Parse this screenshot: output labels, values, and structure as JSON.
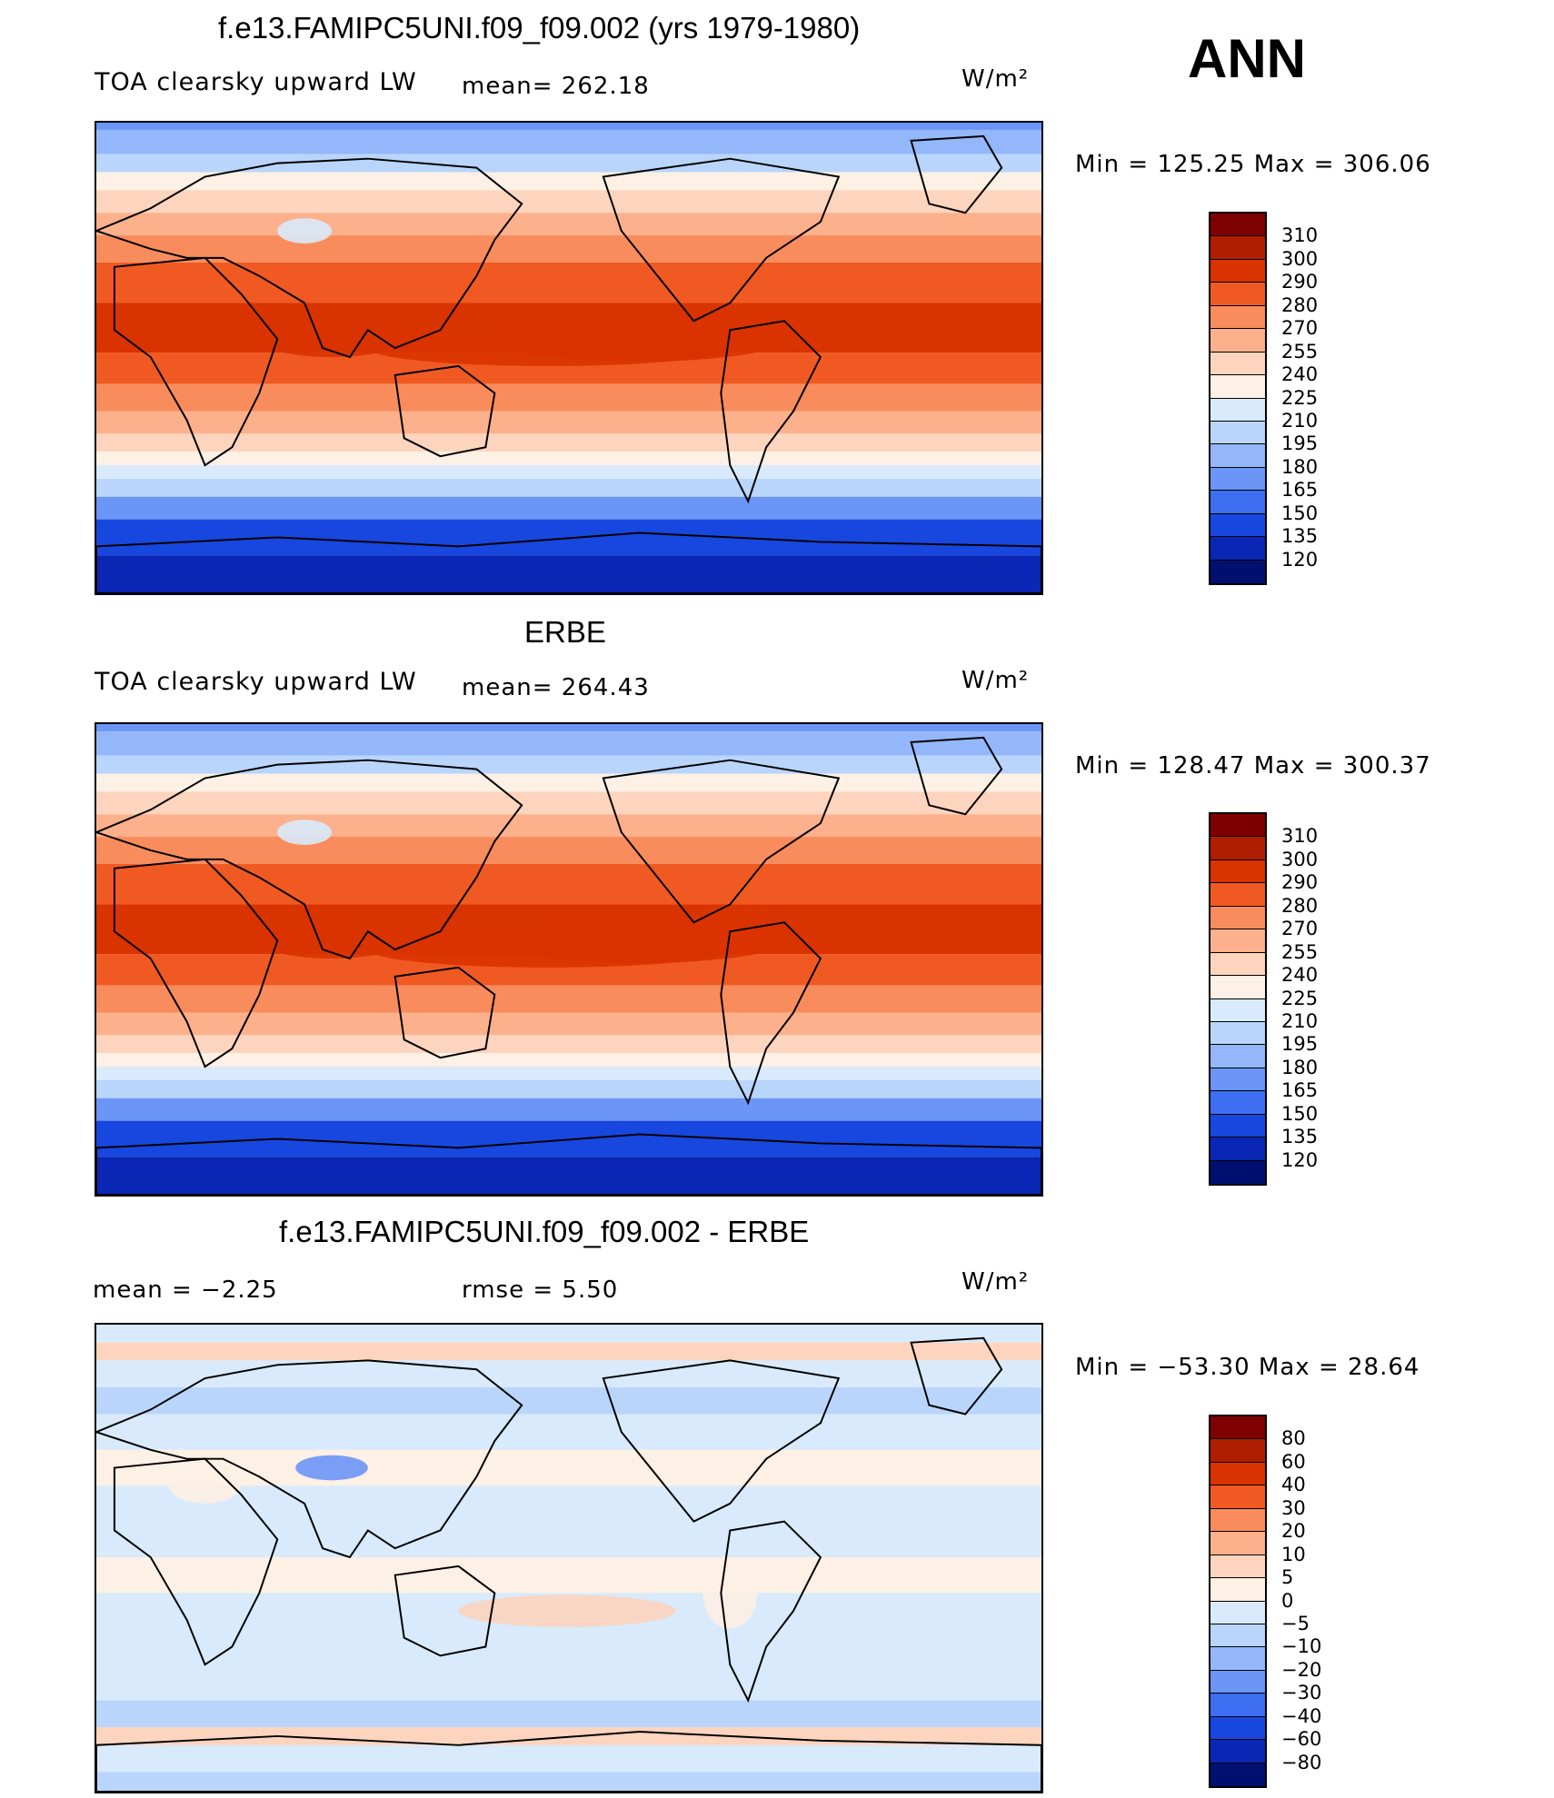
{
  "season": "ANN",
  "panels": [
    {
      "title": "f.e13.FAMIPC5UNI.f09_f09.002 (yrs 1979-1980)",
      "variable": "TOA clearsky upward LW",
      "left_stat": "mean=",
      "left_value": "262.18",
      "units": "W/m²",
      "min_max": "Min  =  125.25  Max  =  306.06",
      "kind": "abs",
      "colorbar_labels": [
        "310",
        "300",
        "290",
        "280",
        "270",
        "255",
        "240",
        "225",
        "210",
        "195",
        "180",
        "165",
        "150",
        "135",
        "120"
      ]
    },
    {
      "title": "ERBE",
      "variable": "TOA clearsky upward LW",
      "left_stat": "mean=",
      "left_value": "264.43",
      "units": "W/m²",
      "min_max": "Min  =  128.47  Max  =  300.37",
      "kind": "abs",
      "colorbar_labels": [
        "310",
        "300",
        "290",
        "280",
        "270",
        "255",
        "240",
        "225",
        "210",
        "195",
        "180",
        "165",
        "150",
        "135",
        "120"
      ]
    },
    {
      "title": "f.e13.FAMIPC5UNI.f09_f09.002 - ERBE",
      "variable": "",
      "left_stat": "mean  =    −2.25",
      "right_stat": "rmse  =     5.50",
      "units": "W/m²",
      "min_max": "Min  =  −53.30  Max  =    28.64",
      "kind": "diff",
      "colorbar_labels": [
        "80",
        "60",
        "40",
        "30",
        "20",
        "10",
        "5",
        "0",
        "−5",
        "−10",
        "−20",
        "−30",
        "−40",
        "−60",
        "−80"
      ]
    }
  ],
  "colors": {
    "palette": [
      "#7f0000",
      "#b01e00",
      "#d93300",
      "#f05a22",
      "#f98c5c",
      "#fcb08c",
      "#fdd4bd",
      "#fdf0e4",
      "#d8eafb",
      "#b9d5fb",
      "#93b7fa",
      "#6b95f6",
      "#3d6ef2",
      "#1847df",
      "#0a26b4",
      "#001070"
    ]
  }
}
